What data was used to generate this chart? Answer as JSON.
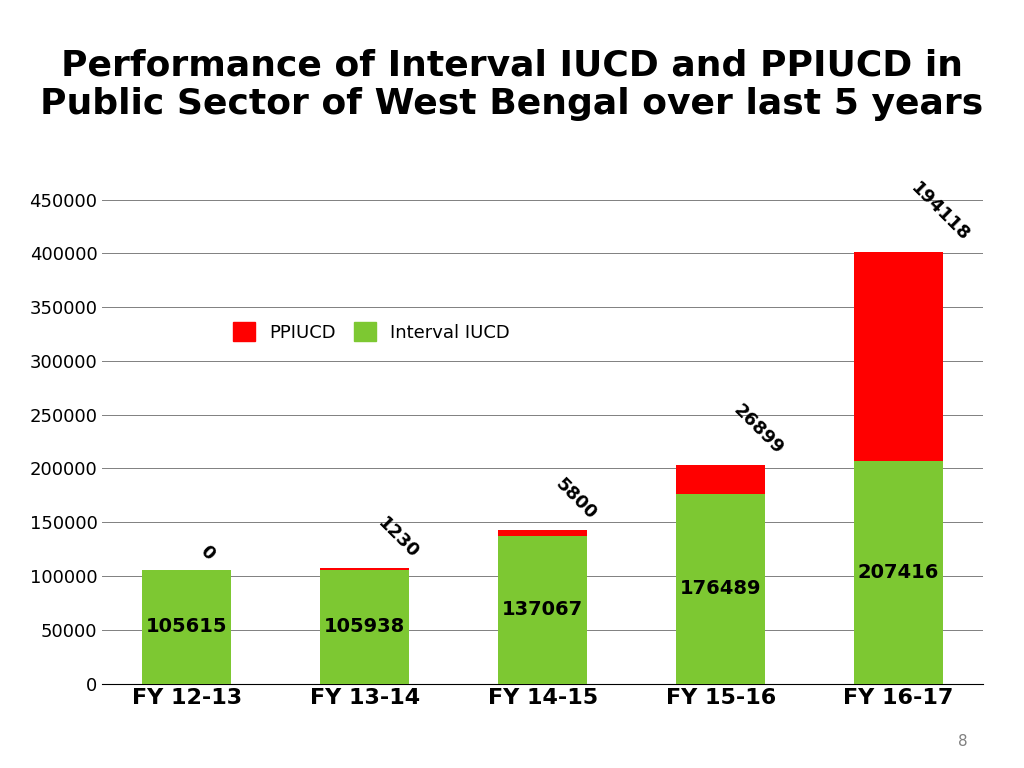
{
  "title_line1": "Performance of Interval IUCD and PPIUCD in",
  "title_line2": "Public Sector of West Bengal over last 5 years",
  "categories": [
    "FY 12-13",
    "FY 13-14",
    "FY 14-15",
    "FY 15-16",
    "FY 16-17"
  ],
  "interval_iucd": [
    105615,
    105938,
    137067,
    176489,
    207416
  ],
  "ppiucd": [
    0,
    1230,
    5800,
    26899,
    194118
  ],
  "bar_color_green": "#7DC832",
  "bar_color_red": "#FF0000",
  "ylim": [
    0,
    450000
  ],
  "yticks": [
    0,
    50000,
    100000,
    150000,
    200000,
    250000,
    300000,
    350000,
    400000,
    450000
  ],
  "legend_ppiucd": "PPIUCD",
  "legend_interval": "Interval IUCD",
  "green_label_fontsize": 14,
  "red_label_fontsize": 13,
  "title_fontsize": 26,
  "tick_fontsize": 13,
  "legend_fontsize": 13,
  "page_number": "8",
  "background_color": "#FFFFFF"
}
